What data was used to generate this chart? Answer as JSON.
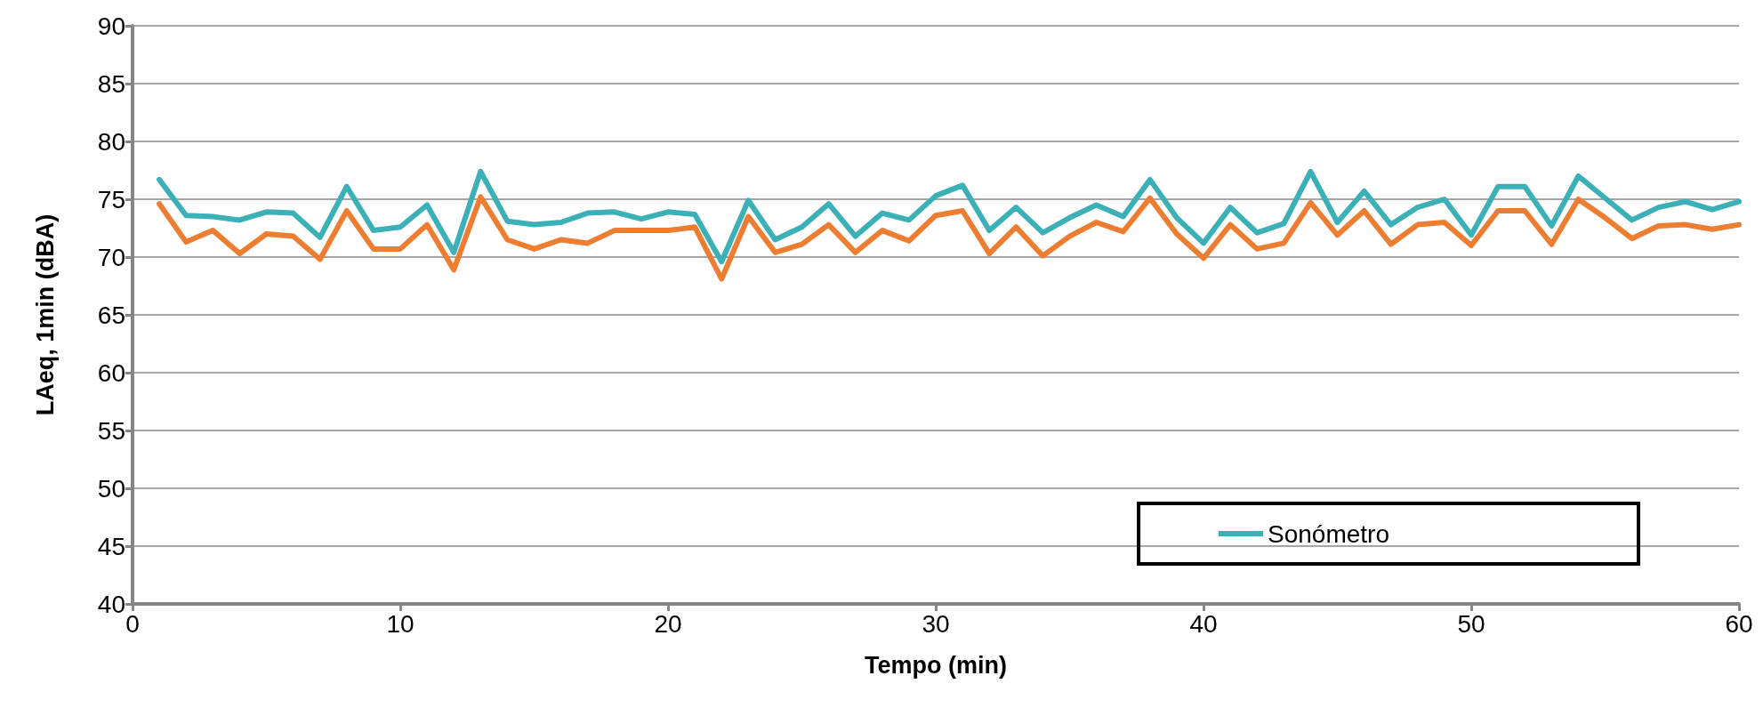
{
  "chart_data": {
    "type": "line",
    "xlabel": "Tempo (min)",
    "ylabel": "LAeq, 1min (dBA)",
    "x": [
      1,
      2,
      3,
      4,
      5,
      6,
      7,
      8,
      9,
      10,
      11,
      12,
      13,
      14,
      15,
      16,
      17,
      18,
      19,
      20,
      21,
      22,
      23,
      24,
      25,
      26,
      27,
      28,
      29,
      30,
      31,
      32,
      33,
      34,
      35,
      36,
      37,
      38,
      39,
      40,
      41,
      42,
      43,
      44,
      45,
      46,
      47,
      48,
      49,
      50,
      51,
      52,
      53,
      54,
      55,
      56,
      57,
      58,
      59,
      60
    ],
    "series": [
      {
        "name": "Sonómetro",
        "color": "#3bb0b6",
        "values": [
          76.7,
          73.6,
          73.5,
          73.2,
          73.9,
          73.8,
          71.7,
          76.1,
          72.3,
          72.6,
          74.5,
          70.4,
          77.4,
          73.1,
          72.8,
          73.0,
          73.8,
          73.9,
          73.3,
          73.9,
          73.7,
          69.6,
          74.9,
          71.5,
          72.6,
          74.6,
          71.8,
          73.8,
          73.2,
          75.3,
          76.2,
          72.3,
          74.3,
          72.1,
          73.4,
          74.5,
          73.5,
          76.7,
          73.4,
          71.2,
          74.3,
          72.1,
          72.9,
          77.4,
          73.0,
          75.7,
          72.8,
          74.3,
          75.0,
          71.9,
          76.1,
          76.1,
          72.7,
          77.0,
          75.1,
          73.2,
          74.3,
          74.8,
          74.1,
          74.8
        ]
      },
      {
        "color": "#ed7d31",
        "values": [
          74.6,
          71.3,
          72.3,
          70.3,
          72.0,
          71.8,
          69.8,
          74.0,
          70.7,
          70.7,
          72.8,
          68.9,
          75.2,
          71.5,
          70.7,
          71.5,
          71.2,
          72.3,
          72.3,
          72.3,
          72.6,
          68.1,
          73.5,
          70.4,
          71.1,
          72.8,
          70.4,
          72.3,
          71.4,
          73.6,
          74.0,
          70.3,
          72.6,
          70.1,
          71.8,
          73.0,
          72.2,
          75.1,
          72.0,
          69.9,
          72.8,
          70.7,
          71.2,
          74.7,
          71.9,
          74.0,
          71.1,
          72.8,
          73.0,
          71.0,
          74.0,
          74.0,
          71.1,
          75.0,
          73.4,
          71.6,
          72.7,
          72.8,
          72.4,
          72.8
        ]
      }
    ],
    "xlim": [
      0,
      60
    ],
    "xticks": [
      0,
      10,
      20,
      30,
      40,
      50,
      60
    ],
    "ylim": [
      40,
      90
    ],
    "yticks": [
      40,
      45,
      50,
      55,
      60,
      65,
      70,
      75,
      80,
      85,
      90
    ],
    "grid": "y",
    "legend": "bottom right",
    "marker": "none",
    "line_style": "solid"
  }
}
